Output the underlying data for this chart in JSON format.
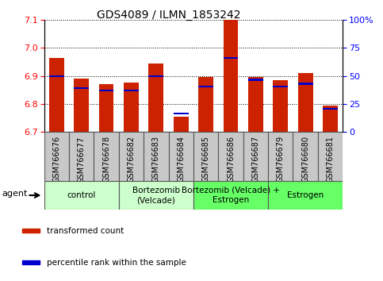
{
  "title": "GDS4089 / ILMN_1853242",
  "samples": [
    "GSM766676",
    "GSM766677",
    "GSM766678",
    "GSM766682",
    "GSM766683",
    "GSM766684",
    "GSM766685",
    "GSM766686",
    "GSM766687",
    "GSM766679",
    "GSM766680",
    "GSM766681"
  ],
  "red_values": [
    6.965,
    6.89,
    6.87,
    6.875,
    6.945,
    6.755,
    6.895,
    7.1,
    6.895,
    6.885,
    6.91,
    6.795
  ],
  "blue_values": [
    6.9,
    6.856,
    6.847,
    6.848,
    6.9,
    6.767,
    6.862,
    6.963,
    6.886,
    6.863,
    6.872,
    6.784
  ],
  "y_min": 6.7,
  "y_max": 7.1,
  "y_left_ticks": [
    6.7,
    6.8,
    6.9,
    7.0,
    7.1
  ],
  "y_right_ticks": [
    0,
    25,
    50,
    75,
    100
  ],
  "y_right_ticklabels": [
    "0",
    "25",
    "50",
    "75",
    "100%"
  ],
  "groups": [
    {
      "label": "control",
      "start": 0,
      "end": 3,
      "color": "#ccffcc"
    },
    {
      "label": "Bortezomib\n(Velcade)",
      "start": 3,
      "end": 6,
      "color": "#ccffcc"
    },
    {
      "label": "Bortezomib (Velcade) +\nEstrogen",
      "start": 6,
      "end": 9,
      "color": "#66ff66"
    },
    {
      "label": "Estrogen",
      "start": 9,
      "end": 12,
      "color": "#66ff66"
    }
  ],
  "bar_color": "#cc2200",
  "blue_color": "#0000cc",
  "baseline": 6.7,
  "legend_items": [
    "transformed count",
    "percentile rank within the sample"
  ],
  "legend_colors": [
    "#cc2200",
    "#0000cc"
  ],
  "agent_label": "agent",
  "xlabels_bg": "#c8c8c8",
  "group_border_color": "#555555",
  "sample_cell_border": "#555555"
}
